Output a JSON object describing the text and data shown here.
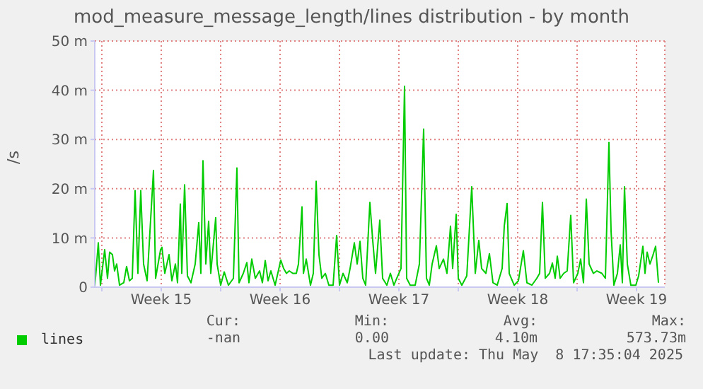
{
  "chart_data": {
    "type": "line",
    "title": "mod_measure_message_length/lines distribution - by month",
    "ylabel": "/s",
    "xlim": [
      "2025-04-06T14:00",
      "2025-05-10T04:00"
    ],
    "xticks": [
      {
        "value": "2025-04-07T00:00",
        "label": null
      },
      {
        "value": "2025-04-10T12:00",
        "label": "Week 15"
      },
      {
        "value": "2025-04-14T00:00",
        "label": null
      },
      {
        "value": "2025-04-17T12:00",
        "label": "Week 16"
      },
      {
        "value": "2025-04-21T00:00",
        "label": null
      },
      {
        "value": "2025-04-24T12:00",
        "label": "Week 17"
      },
      {
        "value": "2025-04-28T00:00",
        "label": null
      },
      {
        "value": "2025-05-01T12:00",
        "label": "Week 18"
      },
      {
        "value": "2025-05-05T00:00",
        "label": null
      },
      {
        "value": "2025-05-08T12:00",
        "label": "Week 19"
      }
    ],
    "ylim": [
      0,
      50
    ],
    "yticks": [
      0,
      {
        "value": 10,
        "label": "10 m"
      },
      {
        "value": 20,
        "label": "20 m"
      },
      {
        "value": 30,
        "label": "30 m"
      },
      {
        "value": 40,
        "label": "40 m"
      },
      {
        "value": 50,
        "label": "50 m"
      }
    ],
    "grid": true,
    "legend": "bottom",
    "marker": "none",
    "line_style": "solid",
    "annotations": [
      "Cur:",
      "Min:",
      "Avg:",
      "Max:",
      "-nan",
      "0.00",
      "4.10m",
      "573.73m",
      "Last update: Thu May  8 17:35:04 2025"
    ],
    "series": [
      {
        "name": "lines",
        "color": "#00cc00",
        "x": [
          "2025-04-06T14:00",
          "2025-04-06T19:00",
          "2025-04-06T22:00",
          "2025-04-07T04:00",
          "2025-04-07T08:00",
          "2025-04-07T11:00",
          "2025-04-07T15:00",
          "2025-04-07T18:00",
          "2025-04-07T21:00",
          "2025-04-08T01:00",
          "2025-04-08T07:00",
          "2025-04-08T11:00",
          "2025-04-08T15:00",
          "2025-04-08T19:00",
          "2025-04-08T23:00",
          "2025-04-09T03:00",
          "2025-04-09T07:00",
          "2025-04-09T11:00",
          "2025-04-09T16:00",
          "2025-04-10T01:00",
          "2025-04-10T04:00",
          "2025-04-10T11:00",
          "2025-04-10T13:00",
          "2025-04-10T17:00",
          "2025-04-10T23:00",
          "2025-04-11T03:00",
          "2025-04-11T08:00",
          "2025-04-11T11:00",
          "2025-04-11T15:00",
          "2025-04-11T17:00",
          "2025-04-11T21:00",
          "2025-04-12T01:00",
          "2025-04-12T06:00",
          "2025-04-12T12:00",
          "2025-04-12T17:00",
          "2025-04-12T20:00",
          "2025-04-12T23:00",
          "2025-04-13T03:00",
          "2025-04-13T07:00",
          "2025-04-13T10:00",
          "2025-04-13T17:00",
          "2025-04-13T19:00",
          "2025-04-14T00:00",
          "2025-04-14T05:00",
          "2025-04-14T11:00",
          "2025-04-14T18:00",
          "2025-04-14T23:00",
          "2025-04-15T02:00",
          "2025-04-15T08:00",
          "2025-04-15T13:00",
          "2025-04-15T16:00",
          "2025-04-15T20:00",
          "2025-04-16T01:00",
          "2025-04-16T07:00",
          "2025-04-16T11:00",
          "2025-04-16T15:00",
          "2025-04-16T19:00",
          "2025-04-16T23:00",
          "2025-04-17T05:00",
          "2025-04-17T13:00",
          "2025-04-17T17:00",
          "2025-04-17T21:00",
          "2025-04-18T01:00",
          "2025-04-18T06:00",
          "2025-04-18T11:00",
          "2025-04-18T14:00",
          "2025-04-18T19:00",
          "2025-04-18T21:00",
          "2025-04-19T01:00",
          "2025-04-19T07:00",
          "2025-04-19T11:00",
          "2025-04-19T15:00",
          "2025-04-19T19:00",
          "2025-04-19T23:00",
          "2025-04-20T04:00",
          "2025-04-20T09:00",
          "2025-04-20T15:00",
          "2025-04-20T20:00",
          "2025-04-21T00:00",
          "2025-04-21T05:00",
          "2025-04-21T11:00",
          "2025-04-21T15:00",
          "2025-04-21T21:00",
          "2025-04-22T01:00",
          "2025-04-22T05:00",
          "2025-04-22T09:00",
          "2025-04-22T13:00",
          "2025-04-22T19:00",
          "2025-04-22T23:00",
          "2025-04-23T03:00",
          "2025-04-23T09:00",
          "2025-04-23T13:00",
          "2025-04-23T19:00",
          "2025-04-24T00:00",
          "2025-04-24T05:00",
          "2025-04-24T09:00",
          "2025-04-24T15:00",
          "2025-04-24T20:00",
          "2025-04-24T23:00",
          "2025-04-25T04:00",
          "2025-04-25T11:00",
          "2025-04-25T17:00",
          "2025-04-25T23:00",
          "2025-04-26T03:00",
          "2025-04-26T07:00",
          "2025-04-26T11:00",
          "2025-04-26T17:00",
          "2025-04-26T21:00",
          "2025-04-27T03:00",
          "2025-04-27T08:00",
          "2025-04-27T13:00",
          "2025-04-27T16:00",
          "2025-04-27T21:00",
          "2025-04-28T00:00",
          "2025-04-28T05:00",
          "2025-04-28T12:00",
          "2025-04-28T19:00",
          "2025-04-29T00:00",
          "2025-04-29T05:00",
          "2025-04-29T09:00",
          "2025-04-29T15:00",
          "2025-04-29T20:00",
          "2025-04-30T01:00",
          "2025-04-30T07:00",
          "2025-04-30T14:00",
          "2025-04-30T17:00",
          "2025-04-30T21:00",
          "2025-05-01T00:00",
          "2025-05-01T07:00",
          "2025-05-01T13:00",
          "2025-05-01T20:00",
          "2025-05-02T01:00",
          "2025-05-02T08:00",
          "2025-05-02T15:00",
          "2025-05-02T19:00",
          "2025-05-02T23:00",
          "2025-05-03T03:00",
          "2025-05-03T09:00",
          "2025-05-03T13:00",
          "2025-05-03T17:00",
          "2025-05-03T20:00",
          "2025-05-04T00:00",
          "2025-05-04T05:00",
          "2025-05-04T10:00",
          "2025-05-04T15:00",
          "2025-05-04T19:00",
          "2025-05-05T01:00",
          "2025-05-05T05:00",
          "2025-05-05T09:00",
          "2025-05-05T13:00",
          "2025-05-05T17:00",
          "2025-05-05T23:00",
          "2025-05-06T04:00",
          "2025-05-06T11:00",
          "2025-05-06T16:00",
          "2025-05-06T21:00",
          "2025-05-07T00:00",
          "2025-05-07T04:00",
          "2025-05-07T09:00",
          "2025-05-07T13:00",
          "2025-05-07T16:00",
          "2025-05-07T19:00",
          "2025-05-07T23:00",
          "2025-05-08T04:00",
          "2025-05-08T11:00",
          "2025-05-08T15:00",
          "2025-05-08T21:00",
          "2025-05-09T00:00",
          "2025-05-09T03:00",
          "2025-05-09T07:00",
          "2025-05-09T11:00",
          "2025-05-09T15:00",
          "2025-05-09T19:00"
        ],
        "values": [
          0,
          9.0,
          0.4,
          7.6,
          1.8,
          7.1,
          6.6,
          3.3,
          4.7,
          0.4,
          0.9,
          4.2,
          1.3,
          1.8,
          19.6,
          2.8,
          19.6,
          4.7,
          1.3,
          23.7,
          1.8,
          7.6,
          8.1,
          2.8,
          6.6,
          1.3,
          4.7,
          0.9,
          16.9,
          2.8,
          20.8,
          2.3,
          0.9,
          4.7,
          13.1,
          2.8,
          25.7,
          4.7,
          13.4,
          2.8,
          14.1,
          4.7,
          0.4,
          3.1,
          0.4,
          1.8,
          24.2,
          0.9,
          2.8,
          5.0,
          0.9,
          5.7,
          1.8,
          3.3,
          0.9,
          5.4,
          1.3,
          3.3,
          0.4,
          5.5,
          3.8,
          2.8,
          3.3,
          2.8,
          2.8,
          4.7,
          16.3,
          2.8,
          5.7,
          0.4,
          2.8,
          21.5,
          6.6,
          1.8,
          2.8,
          0.4,
          0.4,
          10.5,
          0.4,
          2.8,
          0.9,
          3.8,
          9.0,
          4.7,
          9.3,
          1.8,
          0.4,
          17.2,
          9.5,
          2.8,
          13.6,
          1.8,
          0.4,
          2.8,
          0.4,
          1.8,
          3.8,
          40.8,
          1.8,
          0.4,
          0.4,
          4.7,
          32.1,
          1.8,
          0.4,
          4.7,
          8.4,
          3.8,
          5.7,
          2.8,
          12.4,
          3.8,
          14.8,
          1.8,
          0.4,
          2.3,
          20.4,
          2.8,
          9.5,
          3.8,
          2.8,
          6.8,
          0.9,
          0.4,
          3.8,
          12.4,
          17.0,
          2.8,
          0.4,
          1.3,
          7.4,
          0.9,
          0.4,
          1.8,
          2.8,
          17.2,
          1.8,
          2.8,
          4.9,
          1.8,
          6.3,
          1.8,
          2.8,
          3.3,
          14.6,
          0.9,
          2.8,
          5.7,
          0.9,
          17.9,
          4.7,
          2.8,
          3.3,
          2.8,
          1.8,
          29.4,
          11.4,
          0.4,
          2.8,
          8.6,
          0.9,
          20.4,
          4.7,
          0.4,
          0.4,
          2.3,
          8.3,
          2.8,
          7.1,
          4.7,
          6.4,
          8.3,
          0.9
        ]
      }
    ]
  }
}
